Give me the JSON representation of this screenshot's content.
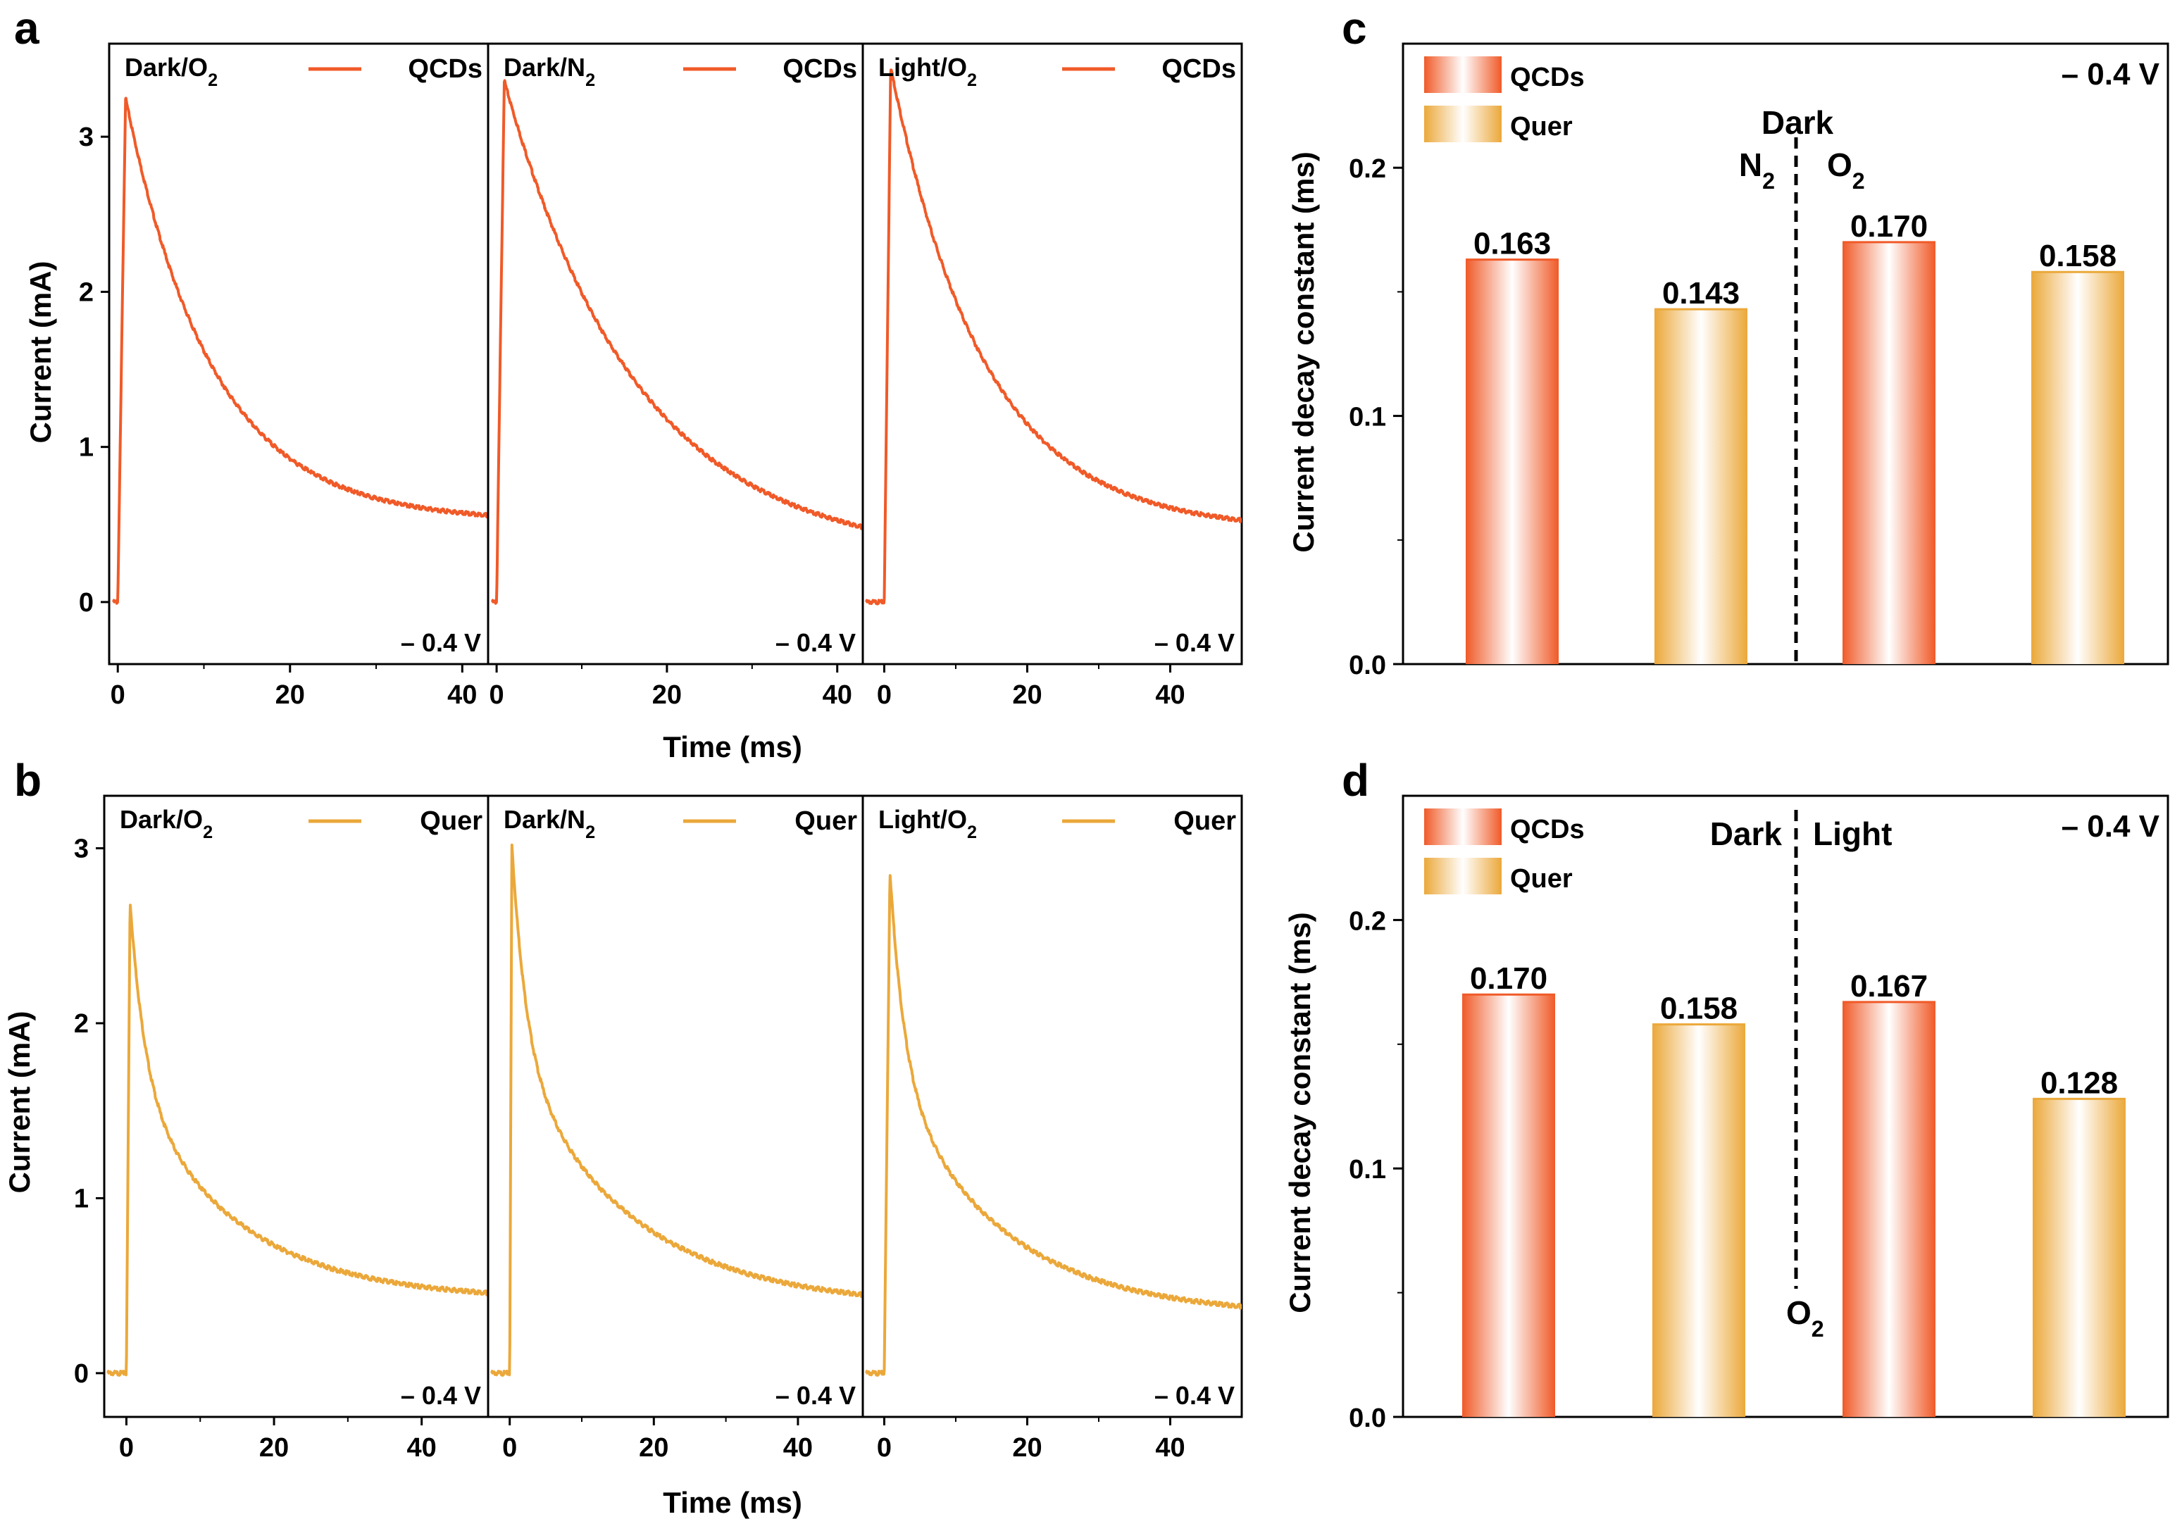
{
  "colors": {
    "qcds": "#f05a28",
    "quer": "#eba83a",
    "axis": "#000000",
    "background": "#ffffff"
  },
  "panel_letters": {
    "a": "a",
    "b": "b",
    "c": "c",
    "d": "d"
  },
  "chart_data": [
    {
      "id": "a",
      "type": "line",
      "xlabel": "Time (ms)",
      "ylabel": "Current (mA)",
      "ylim": [
        -0.4,
        3.6
      ],
      "yticks": [
        0,
        1,
        2,
        3
      ],
      "potential": "– 0.4 V",
      "series_color": "#f05a28",
      "subplots": [
        {
          "condition": "Dark/O",
          "condition_sub": "2",
          "legend": "QCDs",
          "xlim": [
            -1,
            43
          ],
          "xticks": [
            0,
            20,
            40
          ],
          "step": 0.4,
          "peak_time": 0.9,
          "peak": 3.25,
          "tau": 10.0,
          "baseline": 0.52,
          "t_end": 43
        },
        {
          "condition": "Dark/N",
          "condition_sub": "2",
          "legend": "QCDs",
          "xlim": [
            -1,
            43
          ],
          "xticks": [
            0,
            20,
            40
          ],
          "step": 0.3,
          "peak_time": 0.9,
          "peak": 3.36,
          "tau": 15.5,
          "baseline": 0.28,
          "t_end": 43
        },
        {
          "condition": "Light/O",
          "condition_sub": "2",
          "legend": "QCDs",
          "xlim": [
            -3,
            50
          ],
          "xticks": [
            0,
            20,
            40
          ],
          "step": 0.3,
          "peak_time": 0.9,
          "peak": 3.45,
          "tau": 13.0,
          "baseline": 0.46,
          "t_end": 50
        }
      ]
    },
    {
      "id": "b",
      "type": "line",
      "xlabel": "Time (ms)",
      "ylabel": "Current (mA)",
      "ylim": [
        -0.25,
        3.3
      ],
      "yticks": [
        0,
        1,
        2,
        3
      ],
      "potential": "– 0.4 V",
      "series_color": "#eba83a",
      "subplots": [
        {
          "condition": "Dark/O",
          "condition_sub": "2",
          "legend": "Quer",
          "xlim": [
            -3,
            49
          ],
          "xticks": [
            0,
            20,
            40
          ],
          "step": 0.25,
          "peak_time": 0.5,
          "peak": 2.7,
          "tau": 14.0,
          "baseline": 0.42,
          "fast": 2.0,
          "t_end": 49
        },
        {
          "condition": "Dark/N",
          "condition_sub": "2",
          "legend": "Quer",
          "xlim": [
            -3,
            49
          ],
          "xticks": [
            0,
            20,
            40
          ],
          "step": 0.25,
          "peak_time": 0.3,
          "peak": 3.02,
          "tau": 16.0,
          "baseline": 0.38,
          "fast": 2.0,
          "t_end": 49
        },
        {
          "condition": "Light/O",
          "condition_sub": "2",
          "legend": "Quer",
          "xlim": [
            -3,
            50
          ],
          "xticks": [
            0,
            20,
            40
          ],
          "step": 0.25,
          "peak_time": 0.8,
          "peak": 2.87,
          "tau": 15.0,
          "baseline": 0.33,
          "fast": 2.0,
          "t_end": 50
        }
      ]
    },
    {
      "id": "c",
      "type": "bar",
      "ylabel": "Current decay constant (ms)",
      "ylim": [
        0,
        0.25
      ],
      "yticks": [
        "0.0",
        "0.1",
        "0.2"
      ],
      "potential": "– 0.4 V",
      "legend": [
        "QCDs",
        "Quer"
      ],
      "categories": [
        "QCDs",
        "Quer",
        "QCDs",
        "Quer"
      ],
      "values": [
        0.163,
        0.143,
        0.17,
        0.158
      ],
      "value_labels": [
        "0.163",
        "0.143",
        "0.170",
        "0.158"
      ],
      "bar_series": [
        "qcds",
        "quer",
        "qcds",
        "quer"
      ],
      "divider_annotations": {
        "top": "Dark",
        "left": "N",
        "left_sub": "2",
        "right": "O",
        "right_sub": "2"
      }
    },
    {
      "id": "d",
      "type": "bar",
      "ylabel": "Current decay constant (ms)",
      "ylim": [
        0,
        0.25
      ],
      "yticks": [
        "0.0",
        "0.1",
        "0.2"
      ],
      "potential": "– 0.4 V",
      "legend": [
        "QCDs",
        "Quer"
      ],
      "categories": [
        "QCDs",
        "Quer",
        "QCDs",
        "Quer"
      ],
      "values": [
        0.17,
        0.158,
        0.167,
        0.128
      ],
      "value_labels": [
        "0.170",
        "0.158",
        "0.167",
        "0.128"
      ],
      "bar_series": [
        "qcds",
        "quer",
        "qcds",
        "quer"
      ],
      "divider_annotations": {
        "left": "Dark",
        "right": "Light",
        "bottom": "O",
        "bottom_sub": "2"
      }
    }
  ]
}
